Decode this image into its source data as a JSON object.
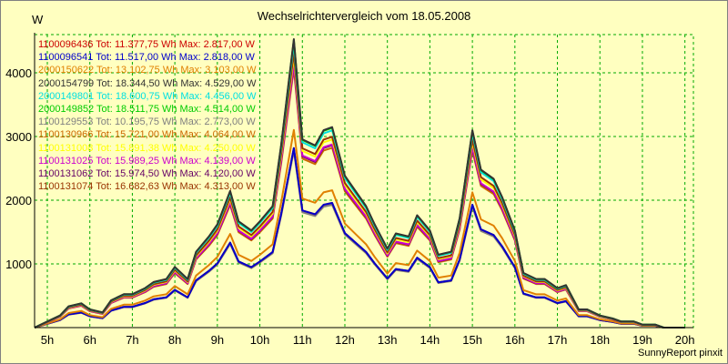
{
  "chart_data": {
    "type": "line",
    "title": "Wechselrichtervergleich vom 18.05.2008",
    "ylabel": "W",
    "footer": "SunnyReport pinxit",
    "x_tick_labels": [
      "5h",
      "6h",
      "7h",
      "8h",
      "9h",
      "10h",
      "11h",
      "12h",
      "13h",
      "14h",
      "15h",
      "16h",
      "17h",
      "18h",
      "19h",
      "20h"
    ],
    "y_ticks": [
      1000,
      2000,
      3000,
      4000
    ],
    "xlim": [
      4.7,
      20.2
    ],
    "ylim": [
      0,
      4600
    ],
    "grid": true,
    "legend_position": "top-left",
    "x": [
      4.7,
      5.0,
      5.3,
      5.5,
      5.8,
      6.0,
      6.3,
      6.5,
      6.8,
      7.0,
      7.3,
      7.5,
      7.8,
      8.0,
      8.3,
      8.5,
      8.8,
      9.0,
      9.3,
      9.5,
      9.8,
      10.0,
      10.3,
      10.5,
      10.8,
      11.0,
      11.3,
      11.5,
      11.7,
      12.0,
      12.2,
      12.5,
      12.7,
      13.0,
      13.2,
      13.5,
      13.7,
      14.0,
      14.2,
      14.5,
      14.7,
      15.0,
      15.2,
      15.5,
      15.7,
      16.0,
      16.2,
      16.5,
      16.7,
      17.0,
      17.2,
      17.5,
      17.7,
      18.0,
      18.3,
      18.5,
      18.8,
      19.0,
      19.3,
      19.5,
      19.8,
      20.0
    ],
    "profile": [
      0,
      0.02,
      0.04,
      0.07,
      0.08,
      0.06,
      0.05,
      0.09,
      0.11,
      0.11,
      0.13,
      0.15,
      0.16,
      0.2,
      0.16,
      0.25,
      0.3,
      0.34,
      0.45,
      0.35,
      0.32,
      0.35,
      0.4,
      0.6,
      0.95,
      0.62,
      0.6,
      0.65,
      0.66,
      0.5,
      0.46,
      0.4,
      0.34,
      0.26,
      0.31,
      0.3,
      0.37,
      0.32,
      0.24,
      0.25,
      0.36,
      0.65,
      0.52,
      0.49,
      0.43,
      0.32,
      0.18,
      0.16,
      0.16,
      0.13,
      0.14,
      0.06,
      0.06,
      0.04,
      0.03,
      0.02,
      0.02,
      0.01,
      0.01,
      0,
      0,
      0
    ],
    "series": [
      {
        "name": "1100096436",
        "label": "1100096436 Tot: 11.377,75 Wh Max: 2.817,00 W",
        "color": "#cc0000"
      },
      {
        "name": "1100096541",
        "label": "1100096541 Tot: 11.517,00 Wh Max: 2.818,00 W",
        "color": "#0000cc"
      },
      {
        "name": "2000150622",
        "label": "2000150622 Tot: 13.102,75 Wh Max: 3.103,00 W",
        "color": "#e08000"
      },
      {
        "name": "2000154799",
        "label": "2000154799 Tot: 18.344,50 Wh Max: 4.529,00 W",
        "color": "#333333"
      },
      {
        "name": "2000149801",
        "label": "2000149801 Tot: 18.600,75 Wh Max: 4.456,00 W",
        "color": "#00e0e0"
      },
      {
        "name": "2000149852",
        "label": "2000149852 Tot: 18.511,75 Wh Max: 4.514,00 W",
        "color": "#00cc00"
      },
      {
        "name": "1100129553",
        "label": "1100129553 Tot: 10.195,75 Wh Max: 2.773,00 W",
        "color": "#808080"
      },
      {
        "name": "1100130966",
        "label": "1100130966 Tot: 15.721,00 Wh Max: 4.064,00 W",
        "color": "#cc6600"
      },
      {
        "name": "1100131008",
        "label": "1100131008 Tot: 15.891,38 Wh Max: 4.250,00 W",
        "color": "#ffff00"
      },
      {
        "name": "1100131025",
        "label": "1100131025 Tot: 15.989,25 Wh Max: 4.139,00 W",
        "color": "#cc00cc"
      },
      {
        "name": "1100131062",
        "label": "1100131062 Tot: 15.974,50 Wh Max: 4.120,00 W",
        "color": "#660066"
      },
      {
        "name": "1100131074",
        "label": "1100131074 Tot: 16.682,63 Wh Max: 4.313,00 W",
        "color": "#993300"
      }
    ],
    "colors": {
      "background": "#ffffc0",
      "grid": "#00aa00",
      "axis": "#000000"
    }
  }
}
